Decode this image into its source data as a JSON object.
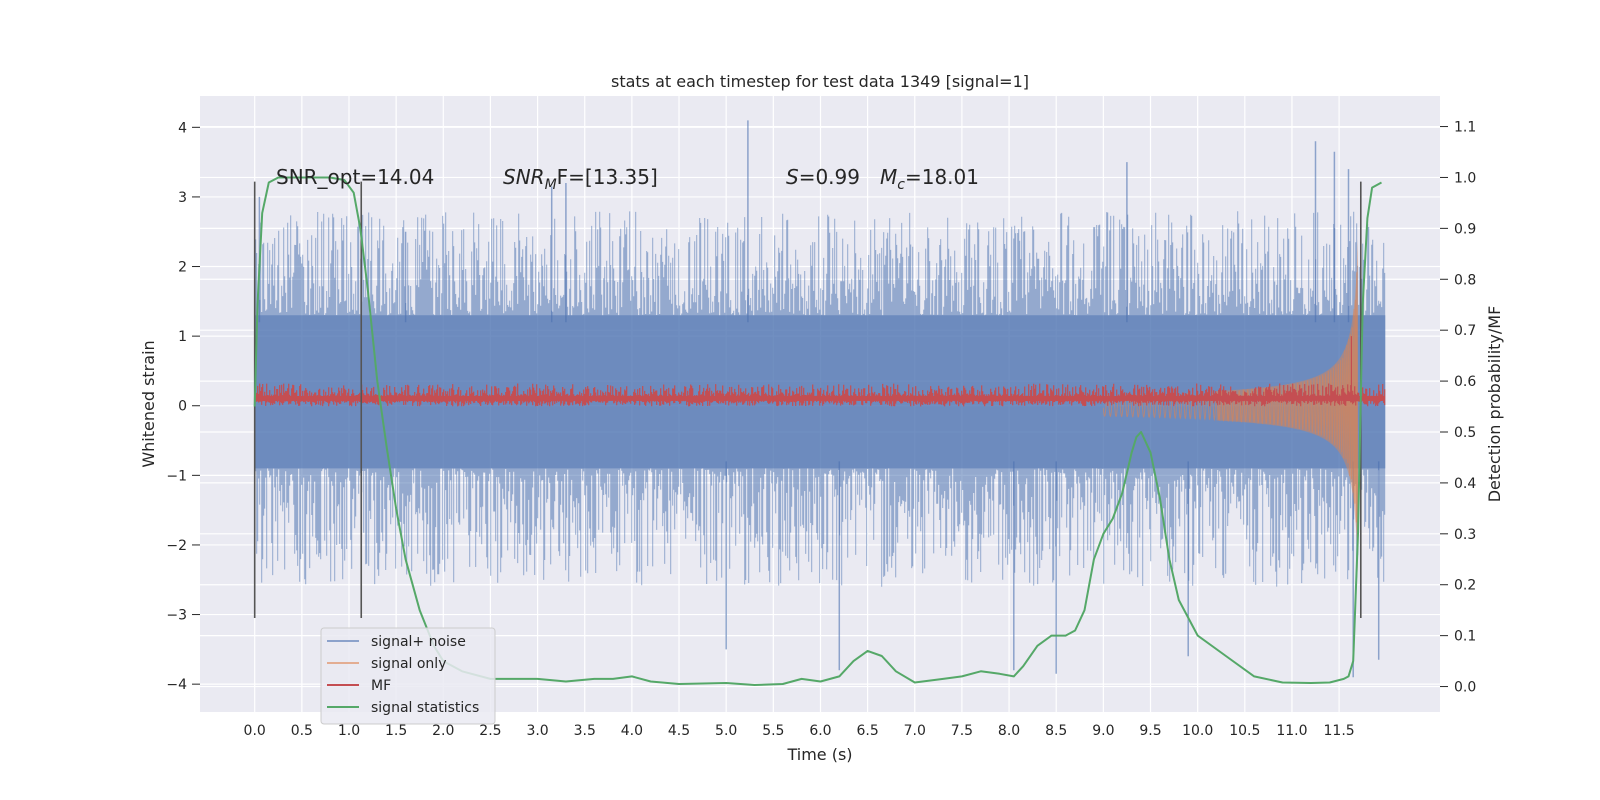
{
  "chart_data": {
    "type": "line",
    "title": "stats at each timestep for test data 1349 [signal=1]",
    "xlabel": "Time (s)",
    "ylabel": "Whitened strain",
    "y2label": "Detection probability/MF",
    "xlim": [
      -0.58,
      12.57
    ],
    "ylim": [
      -4.4,
      4.45
    ],
    "y2lim": [
      -0.05,
      1.16
    ],
    "grid": true,
    "legend_position": "lower-left",
    "x_ticks": [
      "0.0",
      "0.5",
      "1.0",
      "1.5",
      "2.0",
      "2.5",
      "3.0",
      "3.5",
      "4.0",
      "4.5",
      "5.0",
      "5.5",
      "6.0",
      "6.5",
      "7.0",
      "7.5",
      "8.0",
      "8.5",
      "9.0",
      "9.5",
      "10.0",
      "10.5",
      "11.0",
      "11.5"
    ],
    "y_ticks": [
      "4",
      "3",
      "2",
      "1",
      "0",
      "−1",
      "−2",
      "−3",
      "−4"
    ],
    "y2_ticks": [
      "1.1",
      "1.0",
      "0.9",
      "0.8",
      "0.7",
      "0.6",
      "0.5",
      "0.4",
      "0.3",
      "0.2",
      "0.1",
      "0.0"
    ],
    "annotations": {
      "snr_opt": "SNR_opt=14.04",
      "snr_mf_sym": "SNR",
      "snr_mf_sub": "M",
      "snr_mf_rest": "F=[13.35]",
      "s_sym": "S",
      "s_rest": "=0.99",
      "mc_sym": "M",
      "mc_sub": "c",
      "mc_rest": "=18.01"
    },
    "vertical_markers_x": [
      0.0,
      1.13,
      11.73
    ],
    "vertical_marker_range": [
      -3.05,
      3.22
    ],
    "series": [
      {
        "name": "signal+ noise",
        "color": "#4c72b0",
        "x_range": [
          0.0,
          11.99
        ],
        "band_inner": [
          -0.9,
          1.3
        ],
        "peak_upper": [
          [
            0.05,
            3.0
          ],
          [
            1.6,
            2.5
          ],
          [
            3.15,
            3.15
          ],
          [
            3.3,
            3.2
          ],
          [
            5.23,
            4.1
          ],
          [
            9.25,
            3.5
          ],
          [
            11.25,
            3.8
          ],
          [
            11.45,
            3.65
          ],
          [
            11.6,
            3.4
          ]
        ],
        "peak_lower": [
          [
            5.0,
            -3.5
          ],
          [
            6.2,
            -3.8
          ],
          [
            8.05,
            -3.8
          ],
          [
            8.5,
            -3.85
          ],
          [
            9.9,
            -3.6
          ],
          [
            11.65,
            -3.9
          ],
          [
            11.92,
            -3.65
          ]
        ]
      },
      {
        "name": "signal only",
        "color": "#dd8452",
        "x_range": [
          0.0,
          11.7
        ],
        "chirp_end_amplitude": 2.6
      },
      {
        "name": "MF",
        "color": "#c44e52",
        "x_range": [
          0.0,
          11.99
        ],
        "baseline": 0.1,
        "spike": [
          11.63,
          1.0
        ]
      },
      {
        "name": "signal statistics",
        "color": "#55a868",
        "axis": "right",
        "x": [
          0.0,
          0.03,
          0.08,
          0.15,
          0.25,
          0.4,
          0.6,
          0.8,
          0.95,
          1.05,
          1.12,
          1.2,
          1.3,
          1.4,
          1.5,
          1.6,
          1.75,
          1.9,
          2.0,
          2.2,
          2.5,
          3.0,
          3.3,
          3.6,
          3.8,
          4.0,
          4.2,
          4.5,
          5.0,
          5.3,
          5.6,
          5.8,
          6.0,
          6.2,
          6.35,
          6.5,
          6.65,
          6.8,
          7.0,
          7.3,
          7.5,
          7.7,
          7.9,
          8.05,
          8.15,
          8.3,
          8.45,
          8.6,
          8.7,
          8.8,
          8.9,
          9.0,
          9.1,
          9.2,
          9.3,
          9.35,
          9.4,
          9.5,
          9.6,
          9.7,
          9.8,
          10.0,
          10.3,
          10.6,
          10.9,
          11.2,
          11.4,
          11.55,
          11.6,
          11.65,
          11.7,
          11.75,
          11.8,
          11.85,
          11.95
        ],
        "y": [
          0.55,
          0.75,
          0.93,
          0.99,
          1.0,
          1.0,
          1.0,
          1.0,
          0.995,
          0.97,
          0.9,
          0.78,
          0.6,
          0.47,
          0.35,
          0.25,
          0.15,
          0.08,
          0.05,
          0.03,
          0.015,
          0.015,
          0.01,
          0.015,
          0.015,
          0.02,
          0.01,
          0.005,
          0.007,
          0.003,
          0.005,
          0.015,
          0.01,
          0.02,
          0.05,
          0.07,
          0.06,
          0.03,
          0.008,
          0.015,
          0.02,
          0.03,
          0.025,
          0.02,
          0.04,
          0.08,
          0.1,
          0.1,
          0.11,
          0.15,
          0.25,
          0.3,
          0.33,
          0.38,
          0.46,
          0.49,
          0.5,
          0.46,
          0.37,
          0.25,
          0.17,
          0.1,
          0.06,
          0.02,
          0.008,
          0.007,
          0.008,
          0.015,
          0.02,
          0.05,
          0.3,
          0.75,
          0.92,
          0.98,
          0.99
        ]
      }
    ]
  }
}
